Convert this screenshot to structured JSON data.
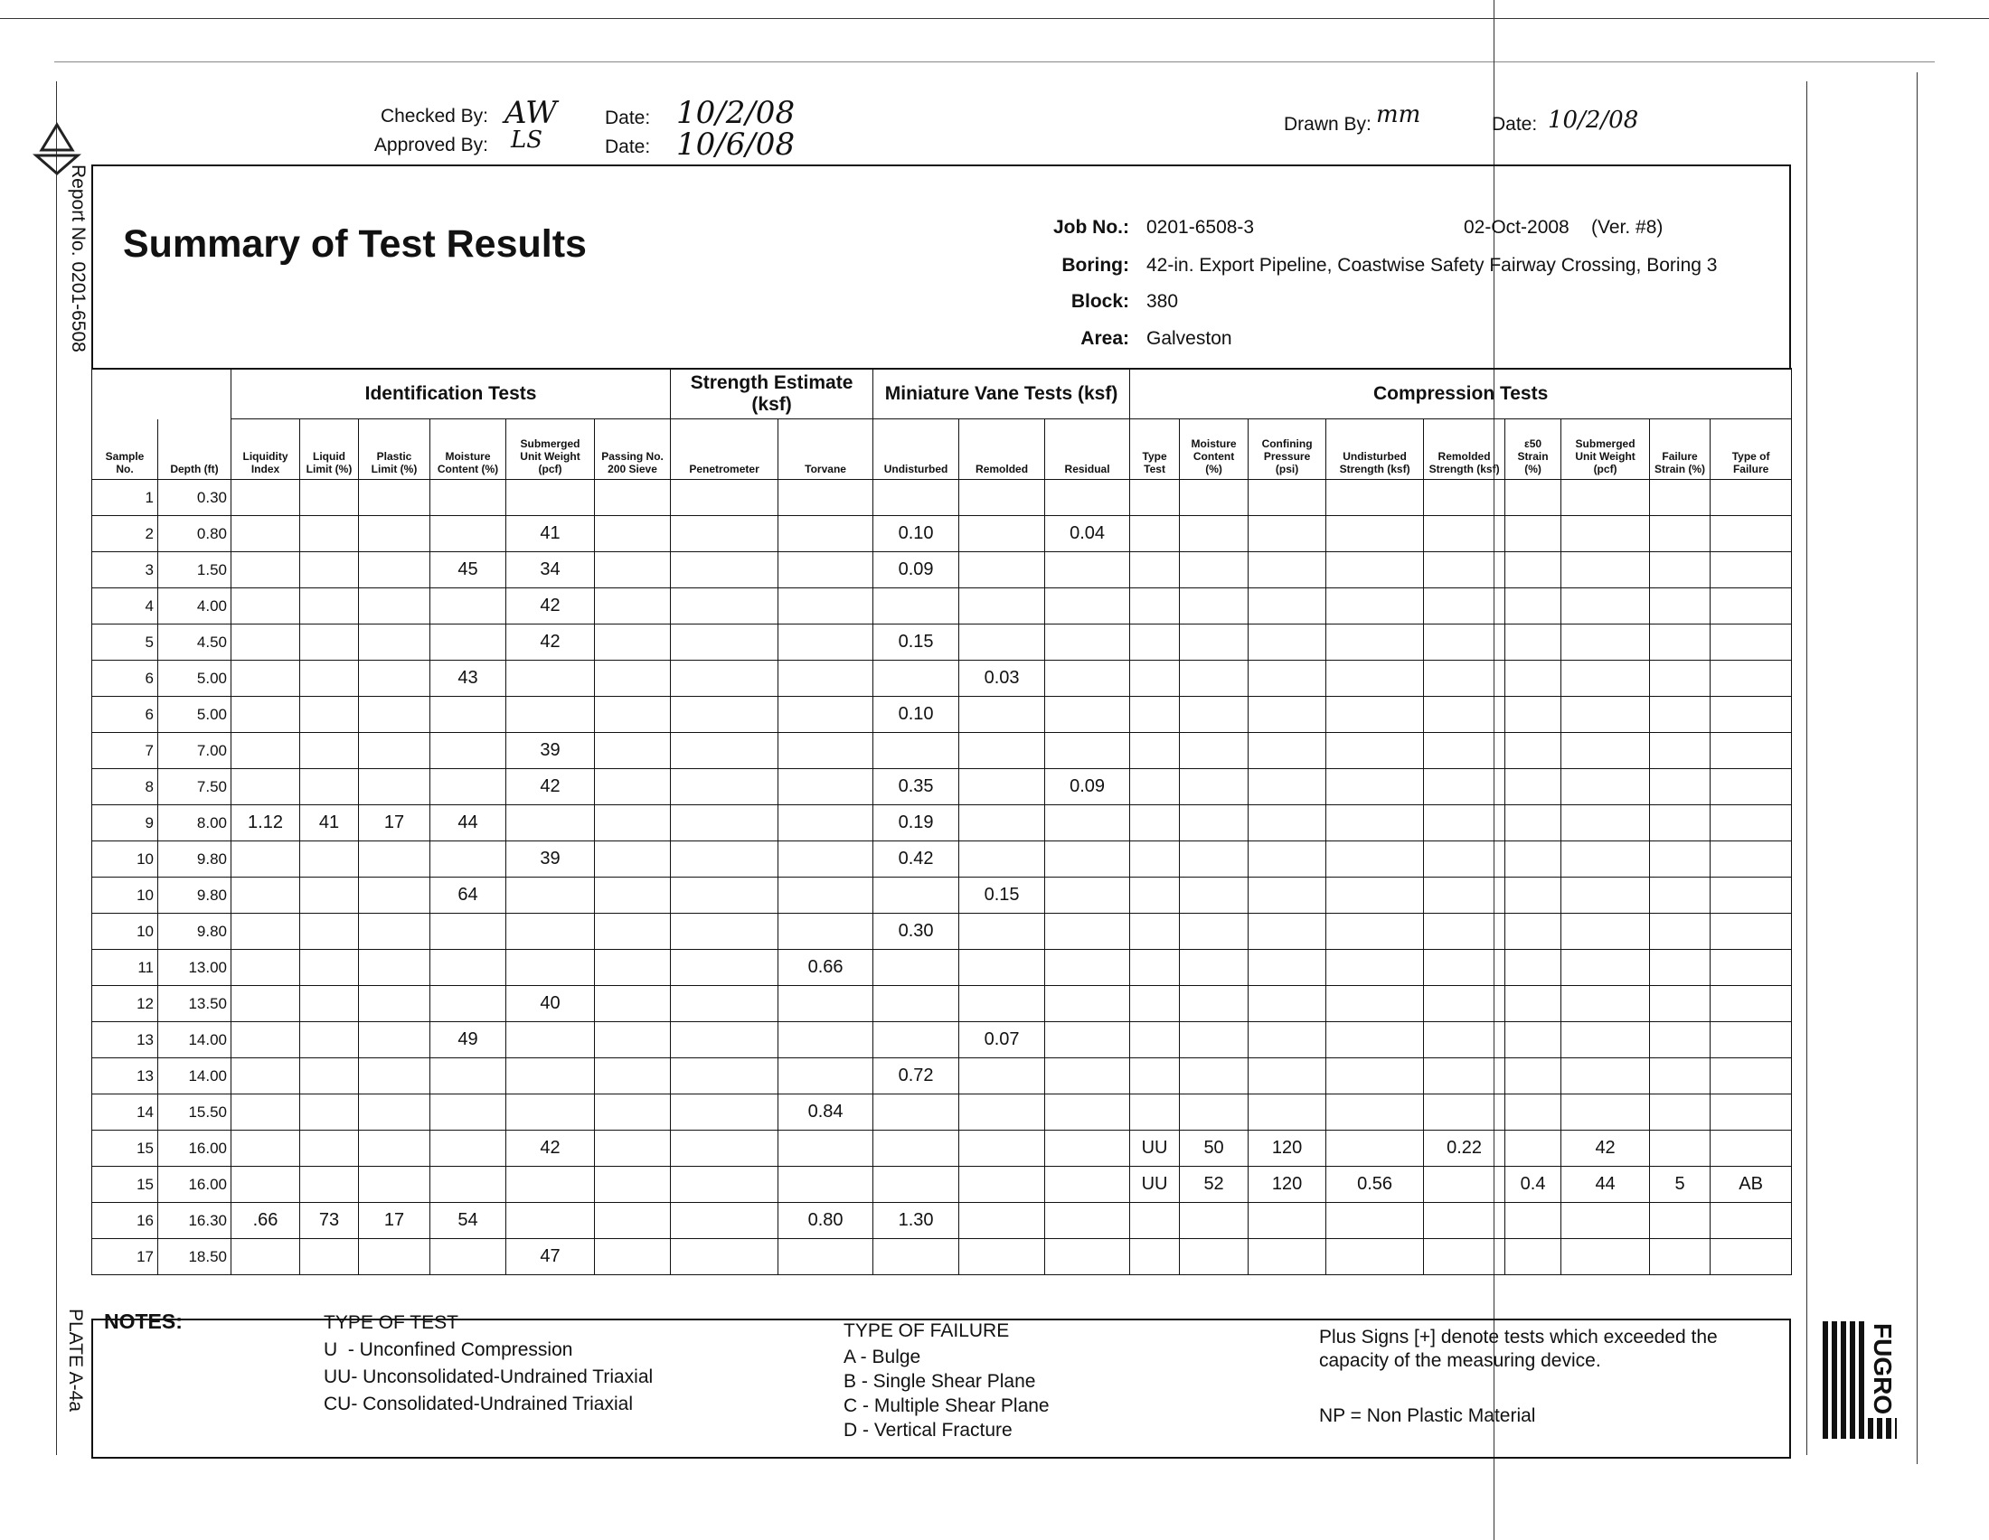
{
  "side_label": "Report No. 0201-6508",
  "plate_label": "PLATE A-4a",
  "signoff": {
    "checked_by_label": "Checked By:",
    "checked_by": "AW",
    "checked_date_label": "Date:",
    "checked_date": "10/2/08",
    "approved_by_label": "Approved By:",
    "approved_by": "LS",
    "approved_date_label": "Date:",
    "approved_date": "10/6/08",
    "drawn_by_label": "Drawn By:",
    "drawn_by": "mm",
    "drawn_date_label": "Date:",
    "drawn_date": "10/2/08"
  },
  "header": {
    "title": "Summary of Test Results",
    "fields": [
      {
        "label": "Job No.:",
        "value": "0201-6508-3"
      },
      {
        "label": "Boring:",
        "value": "42-in. Export Pipeline, Coastwise Safety Fairway Crossing, Boring 3"
      },
      {
        "label": "Block:",
        "value": "380"
      },
      {
        "label": "Area:",
        "value": "Galveston"
      }
    ],
    "date": "02-Oct-2008",
    "version": "(Ver. #8)"
  },
  "table": {
    "groups": [
      "Identification Tests",
      "Strength Estimate (ksf)",
      "Miniature Vane Tests (ksf)",
      "Compression Tests"
    ],
    "columns": [
      "Sample No.",
      "Depth (ft)",
      "Liquidity Index",
      "Liquid Limit (%)",
      "Plastic Limit (%)",
      "Moisture Content (%)",
      "Submerged Unit Weight (pcf)",
      "Passing No. 200 Sieve",
      "Penetrometer",
      "Torvane",
      "Undisturbed",
      "Remolded",
      "Residual",
      "Type Test",
      "Moisture Content (%)",
      "Confining Pressure (psi)",
      "Undisturbed Strength (ksf)",
      "Remolded Strength (ksf)",
      "ε50 Strain (%)",
      "Submerged Unit Weight (pcf)",
      "Failure Strain (%)",
      "Type of Failure"
    ],
    "rows": [
      [
        "1",
        "0.30",
        null,
        null,
        null,
        null,
        null,
        null,
        null,
        null,
        null,
        null,
        null,
        null,
        null,
        null,
        null,
        null,
        null,
        null,
        null,
        null
      ],
      [
        "2",
        "0.80",
        null,
        null,
        null,
        null,
        "41",
        null,
        null,
        null,
        "0.10",
        null,
        "0.04",
        null,
        null,
        null,
        null,
        null,
        null,
        null,
        null,
        null
      ],
      [
        "3",
        "1.50",
        null,
        null,
        null,
        "45",
        "34",
        null,
        null,
        null,
        "0.09",
        null,
        null,
        null,
        null,
        null,
        null,
        null,
        null,
        null,
        null,
        null
      ],
      [
        "4",
        "4.00",
        null,
        null,
        null,
        null,
        "42",
        null,
        null,
        null,
        null,
        null,
        null,
        null,
        null,
        null,
        null,
        null,
        null,
        null,
        null,
        null
      ],
      [
        "5",
        "4.50",
        null,
        null,
        null,
        null,
        "42",
        null,
        null,
        null,
        "0.15",
        null,
        null,
        null,
        null,
        null,
        null,
        null,
        null,
        null,
        null,
        null
      ],
      [
        "6",
        "5.00",
        null,
        null,
        null,
        "43",
        null,
        null,
        null,
        null,
        null,
        "0.03",
        null,
        null,
        null,
        null,
        null,
        null,
        null,
        null,
        null,
        null
      ],
      [
        "6",
        "5.00",
        null,
        null,
        null,
        null,
        null,
        null,
        null,
        null,
        "0.10",
        null,
        null,
        null,
        null,
        null,
        null,
        null,
        null,
        null,
        null,
        null
      ],
      [
        "7",
        "7.00",
        null,
        null,
        null,
        null,
        "39",
        null,
        null,
        null,
        null,
        null,
        null,
        null,
        null,
        null,
        null,
        null,
        null,
        null,
        null,
        null
      ],
      [
        "8",
        "7.50",
        null,
        null,
        null,
        null,
        "42",
        null,
        null,
        null,
        "0.35",
        null,
        "0.09",
        null,
        null,
        null,
        null,
        null,
        null,
        null,
        null,
        null
      ],
      [
        "9",
        "8.00",
        "1.12",
        "41",
        "17",
        "44",
        null,
        null,
        null,
        null,
        "0.19",
        null,
        null,
        null,
        null,
        null,
        null,
        null,
        null,
        null,
        null,
        null
      ],
      [
        "10",
        "9.80",
        null,
        null,
        null,
        null,
        "39",
        null,
        null,
        null,
        "0.42",
        null,
        null,
        null,
        null,
        null,
        null,
        null,
        null,
        null,
        null,
        null
      ],
      [
        "10",
        "9.80",
        null,
        null,
        null,
        "64",
        null,
        null,
        null,
        null,
        null,
        "0.15",
        null,
        null,
        null,
        null,
        null,
        null,
        null,
        null,
        null,
        null
      ],
      [
        "10",
        "9.80",
        null,
        null,
        null,
        null,
        null,
        null,
        null,
        null,
        "0.30",
        null,
        null,
        null,
        null,
        null,
        null,
        null,
        null,
        null,
        null,
        null
      ],
      [
        "11",
        "13.00",
        null,
        null,
        null,
        null,
        null,
        null,
        null,
        "0.66",
        null,
        null,
        null,
        null,
        null,
        null,
        null,
        null,
        null,
        null,
        null,
        null
      ],
      [
        "12",
        "13.50",
        null,
        null,
        null,
        null,
        "40",
        null,
        null,
        null,
        null,
        null,
        null,
        null,
        null,
        null,
        null,
        null,
        null,
        null,
        null,
        null
      ],
      [
        "13",
        "14.00",
        null,
        null,
        null,
        "49",
        null,
        null,
        null,
        null,
        null,
        "0.07",
        null,
        null,
        null,
        null,
        null,
        null,
        null,
        null,
        null,
        null
      ],
      [
        "13",
        "14.00",
        null,
        null,
        null,
        null,
        null,
        null,
        null,
        null,
        "0.72",
        null,
        null,
        null,
        null,
        null,
        null,
        null,
        null,
        null,
        null,
        null
      ],
      [
        "14",
        "15.50",
        null,
        null,
        null,
        null,
        null,
        null,
        null,
        "0.84",
        null,
        null,
        null,
        null,
        null,
        null,
        null,
        null,
        null,
        null,
        null,
        null
      ],
      [
        "15",
        "16.00",
        null,
        null,
        null,
        null,
        "42",
        null,
        null,
        null,
        null,
        null,
        null,
        "UU",
        "50",
        "120",
        null,
        "0.22",
        null,
        "42",
        null,
        null
      ],
      [
        "15",
        "16.00",
        null,
        null,
        null,
        null,
        null,
        null,
        null,
        null,
        null,
        null,
        null,
        "UU",
        "52",
        "120",
        "0.56",
        null,
        "0.4",
        "44",
        "5",
        "AB"
      ],
      [
        "16",
        "16.30",
        ".66",
        "73",
        "17",
        "54",
        null,
        null,
        null,
        "0.80",
        "1.30",
        null,
        null,
        null,
        null,
        null,
        null,
        null,
        null,
        null,
        null,
        null
      ],
      [
        "17",
        "18.50",
        null,
        null,
        null,
        null,
        "47",
        null,
        null,
        null,
        null,
        null,
        null,
        null,
        null,
        null,
        null,
        null,
        null,
        null,
        null,
        null
      ]
    ]
  },
  "notes": {
    "label": "NOTES:",
    "test_heading": "TYPE OF TEST",
    "test_items": [
      "U  - Unconfined Compression",
      "UU- Unconsolidated-Undrained Triaxial",
      "CU- Consolidated-Undrained Triaxial"
    ],
    "failure_heading": "TYPE OF FAILURE",
    "failure_items": [
      "A - Bulge",
      "B - Single Shear Plane",
      "C - Multiple Shear Plane",
      "D - Vertical Fracture"
    ],
    "remarks": [
      "Plus Signs [+] denote tests which exceeded the capacity of the measuring device.",
      "NP = Non Plastic Material"
    ]
  },
  "logo": "FUGRO"
}
